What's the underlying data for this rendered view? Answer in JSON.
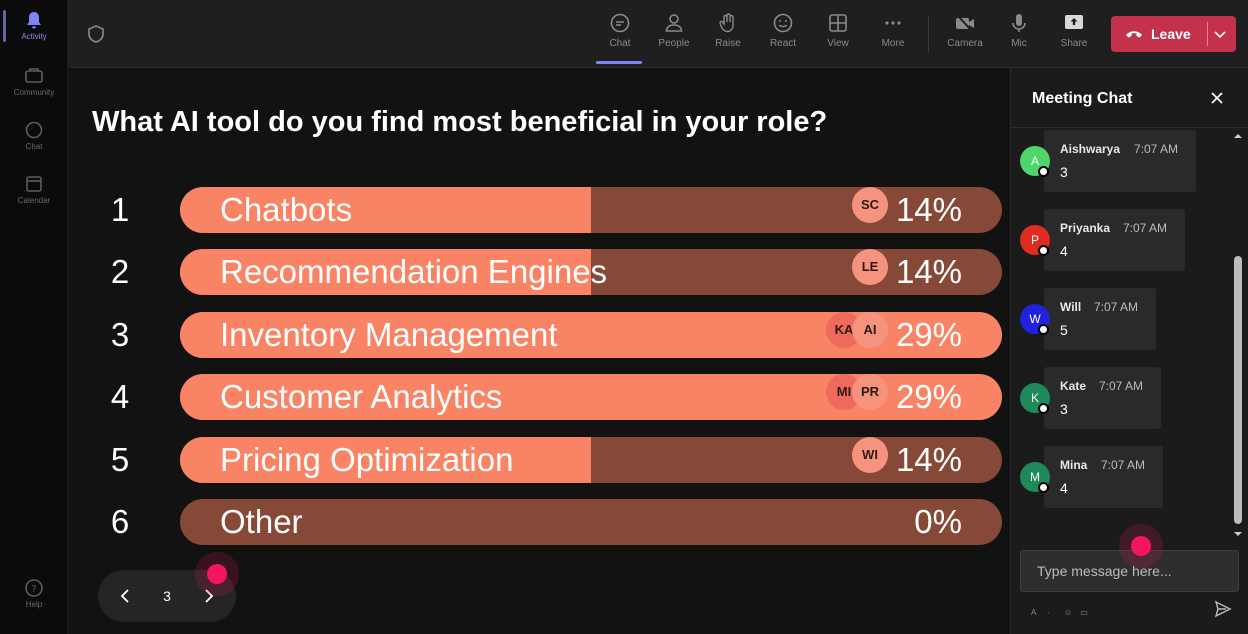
{
  "rail": {
    "items": [
      {
        "label": "Activity",
        "icon": "bell-icon",
        "active": true
      },
      {
        "label": "Community",
        "icon": "community-icon",
        "active": false
      },
      {
        "label": "Chat",
        "icon": "chat-icon",
        "active": false
      },
      {
        "label": "Calendar",
        "icon": "calendar-icon",
        "active": false
      }
    ],
    "help_label": "Help"
  },
  "toolbar": {
    "buttons": [
      {
        "label": "Chat",
        "icon": "chat-icon",
        "active": true
      },
      {
        "label": "People",
        "icon": "people-icon"
      },
      {
        "label": "Raise",
        "icon": "raise-hand-icon"
      },
      {
        "label": "React",
        "icon": "react-icon"
      },
      {
        "label": "View",
        "icon": "view-icon"
      },
      {
        "label": "More",
        "icon": "more-icon"
      },
      {
        "label": "Camera",
        "icon": "camera-off-icon"
      },
      {
        "label": "Mic",
        "icon": "mic-icon"
      },
      {
        "label": "Share",
        "icon": "share-icon"
      }
    ],
    "leave_label": "Leave",
    "leave_color": "#c4314b"
  },
  "poll": {
    "question": "What AI tool do you find most beneficial in your role?",
    "bar_color": "#f98465",
    "track_color": "#864938",
    "options": [
      {
        "num": "1",
        "label": "Chatbots",
        "pct_text": "14%",
        "fraction": 0.5,
        "avatars": [
          "SC"
        ]
      },
      {
        "num": "2",
        "label": "Recommendation Engines",
        "pct_text": "14%",
        "fraction": 0.5,
        "avatars": [
          "LE"
        ]
      },
      {
        "num": "3",
        "label": "Inventory Management",
        "pct_text": "29%",
        "fraction": 1.0,
        "avatars": [
          "KA",
          "AI"
        ]
      },
      {
        "num": "4",
        "label": "Customer Analytics",
        "pct_text": "29%",
        "fraction": 1.0,
        "avatars": [
          "MI",
          "PR"
        ]
      },
      {
        "num": "5",
        "label": "Pricing Optimization",
        "pct_text": "14%",
        "fraction": 0.5,
        "avatars": [
          "WI"
        ]
      },
      {
        "num": "6",
        "label": "Other",
        "pct_text": "0%",
        "fraction": 0.0,
        "avatars": []
      }
    ]
  },
  "pager": {
    "page": "3"
  },
  "chat": {
    "title": "Meeting Chat",
    "messages": [
      {
        "initial": "A",
        "name": "Aishwarya",
        "time": "7:07 AM",
        "text": "3",
        "color": "#4fd66a"
      },
      {
        "initial": "P",
        "name": "Priyanka",
        "time": "7:07 AM",
        "text": "4",
        "color": "#e02b20"
      },
      {
        "initial": "W",
        "name": "Will",
        "time": "7:07 AM",
        "text": "5",
        "color": "#2222dd"
      },
      {
        "initial": "K",
        "name": "Kate",
        "time": "7:07 AM",
        "text": "3",
        "color": "#1e8a5a"
      },
      {
        "initial": "M",
        "name": "Mina",
        "time": "7:07 AM",
        "text": "4",
        "color": "#1e8a5a"
      }
    ],
    "input_placeholder": "Type message here..."
  }
}
